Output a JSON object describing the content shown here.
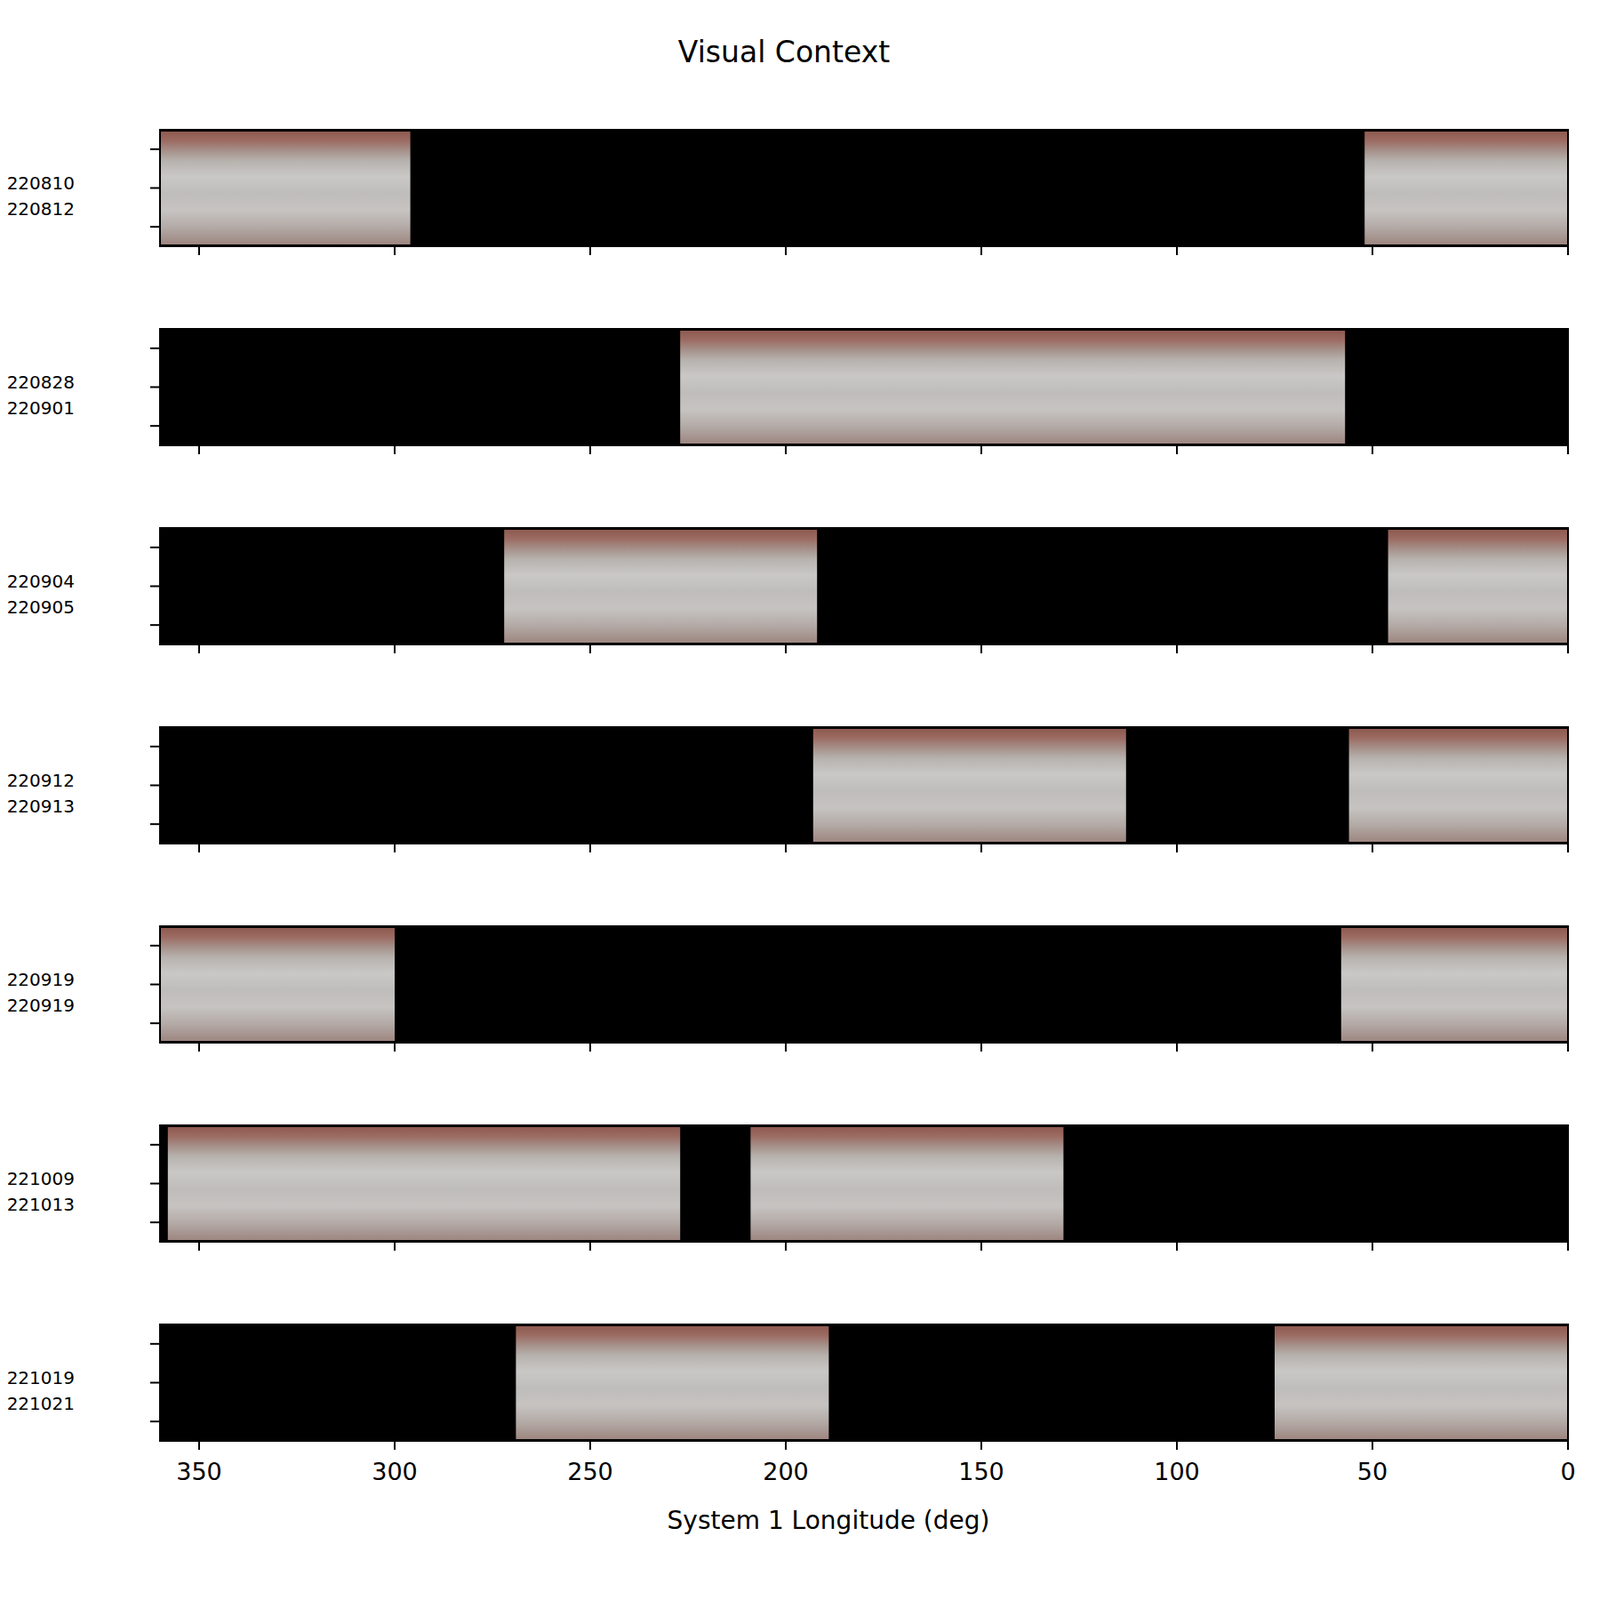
{
  "chart_data": {
    "type": "coverage_strips",
    "title": "Visual Context",
    "x_label": "System 1 Longitude (deg)",
    "xlim": [
      360,
      0
    ],
    "xticks": [
      350,
      300,
      250,
      200,
      150,
      100,
      50,
      0
    ],
    "ylim": [
      0,
      6
    ],
    "yticks": [
      1,
      3,
      5
    ],
    "tick_labels": "x",
    "panels": [
      {
        "labels": [
          "220810",
          "220812"
        ],
        "segments": [
          [
            360,
            296
          ],
          [
            52,
            0
          ]
        ]
      },
      {
        "labels": [
          "220828",
          "220901"
        ],
        "segments": [
          [
            227,
            57
          ]
        ]
      },
      {
        "labels": [
          "220904",
          "220905"
        ],
        "segments": [
          [
            272,
            192
          ],
          [
            46,
            0
          ]
        ]
      },
      {
        "labels": [
          "220912",
          "220913"
        ],
        "segments": [
          [
            193,
            113
          ],
          [
            56,
            0
          ]
        ]
      },
      {
        "labels": [
          "220919",
          "220919"
        ],
        "segments": [
          [
            360,
            300
          ],
          [
            58,
            0
          ]
        ]
      },
      {
        "labels": [
          "221009",
          "221013"
        ],
        "segments": [
          [
            358,
            227
          ],
          [
            209,
            129
          ]
        ]
      },
      {
        "labels": [
          "221019",
          "221021"
        ],
        "segments": [
          [
            269,
            189
          ],
          [
            75,
            0
          ]
        ]
      }
    ]
  }
}
